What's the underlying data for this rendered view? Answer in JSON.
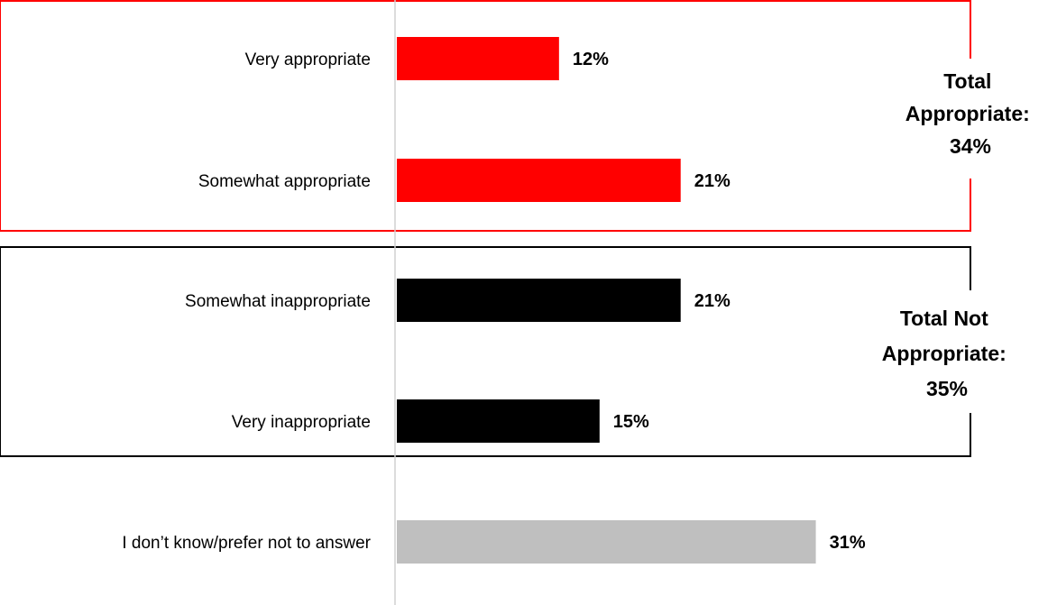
{
  "chart_data": {
    "type": "bar",
    "orientation": "horizontal",
    "categories": [
      "Very appropriate",
      "Somewhat appropriate",
      "Somewhat inappropriate",
      "Very inappropriate",
      "I don’t know/prefer not to answer"
    ],
    "values": [
      12,
      21,
      21,
      15,
      31
    ],
    "value_labels": [
      "12%",
      "21%",
      "21%",
      "15%",
      "31%"
    ],
    "bar_colors": [
      "#ff0000",
      "#ff0000",
      "#000000",
      "#000000",
      "#bfbfbf"
    ],
    "xlim": [
      0,
      37.5
    ],
    "grid": false,
    "legend": "none",
    "groups": [
      {
        "label_lines": [
          "Total",
          "Appropriate:",
          "34%"
        ],
        "value": 34,
        "categories": [
          "Very appropriate",
          "Somewhat appropriate"
        ],
        "border_color": "#ff0000"
      },
      {
        "label_lines": [
          "Total Not",
          "Appropriate:",
          "35%"
        ],
        "value": 35,
        "categories": [
          "Somewhat inappropriate",
          "Very inappropriate"
        ],
        "border_color": "#000000"
      }
    ]
  }
}
